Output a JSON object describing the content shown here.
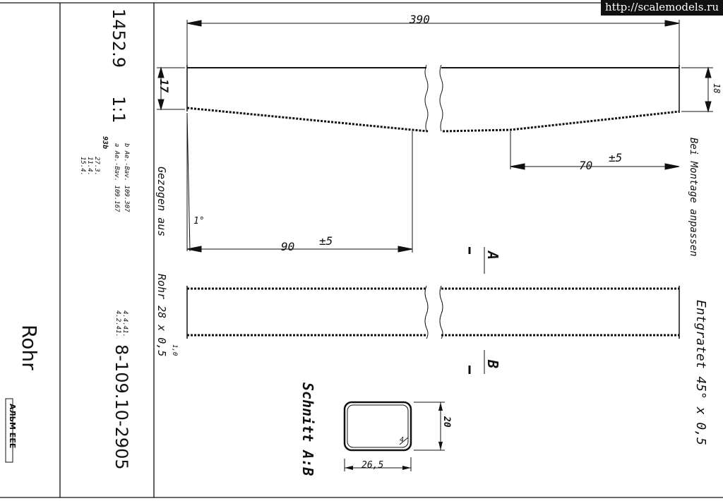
{
  "watermark": "http://scalemodels.ru",
  "title_block": {
    "drawing_no": "1452.9",
    "scale": "1:1",
    "rev_b": "b  Ae.-Bav. 109.307",
    "rev_a": "a  Ae.-Bav. 109.167",
    "rev_code": "93b",
    "date_1": "27.3.",
    "date_2": "11.4.",
    "date_3": "15.4.",
    "approval_1": "4.4.41.",
    "approval_2": "4.2.41.",
    "part_no": "8-109.10-2905",
    "part_name": "Rohr",
    "stamp_text": "АЛЬМ ЕЕЕ"
  },
  "dimensions": {
    "length_total": "390",
    "height_left": "17",
    "height_right": "18",
    "taper_left_len": "90",
    "taper_left_tol": "±5",
    "taper_right_len": "70",
    "taper_right_tol": "±5",
    "angle": "1°",
    "section_width": "26,5",
    "section_height": "20",
    "section_radius": "4"
  },
  "notes": {
    "note_montage": "Bei Montage anpassen",
    "note_drawn": "Gezogen aus",
    "note_tube": "Rohr 28 x 0,5",
    "note_tube_tol": "1,0",
    "note_deburr": "Entgratet 45° x 0,5",
    "section_title": "Schnitt A:B",
    "cut_a": "A",
    "cut_b": "B"
  }
}
